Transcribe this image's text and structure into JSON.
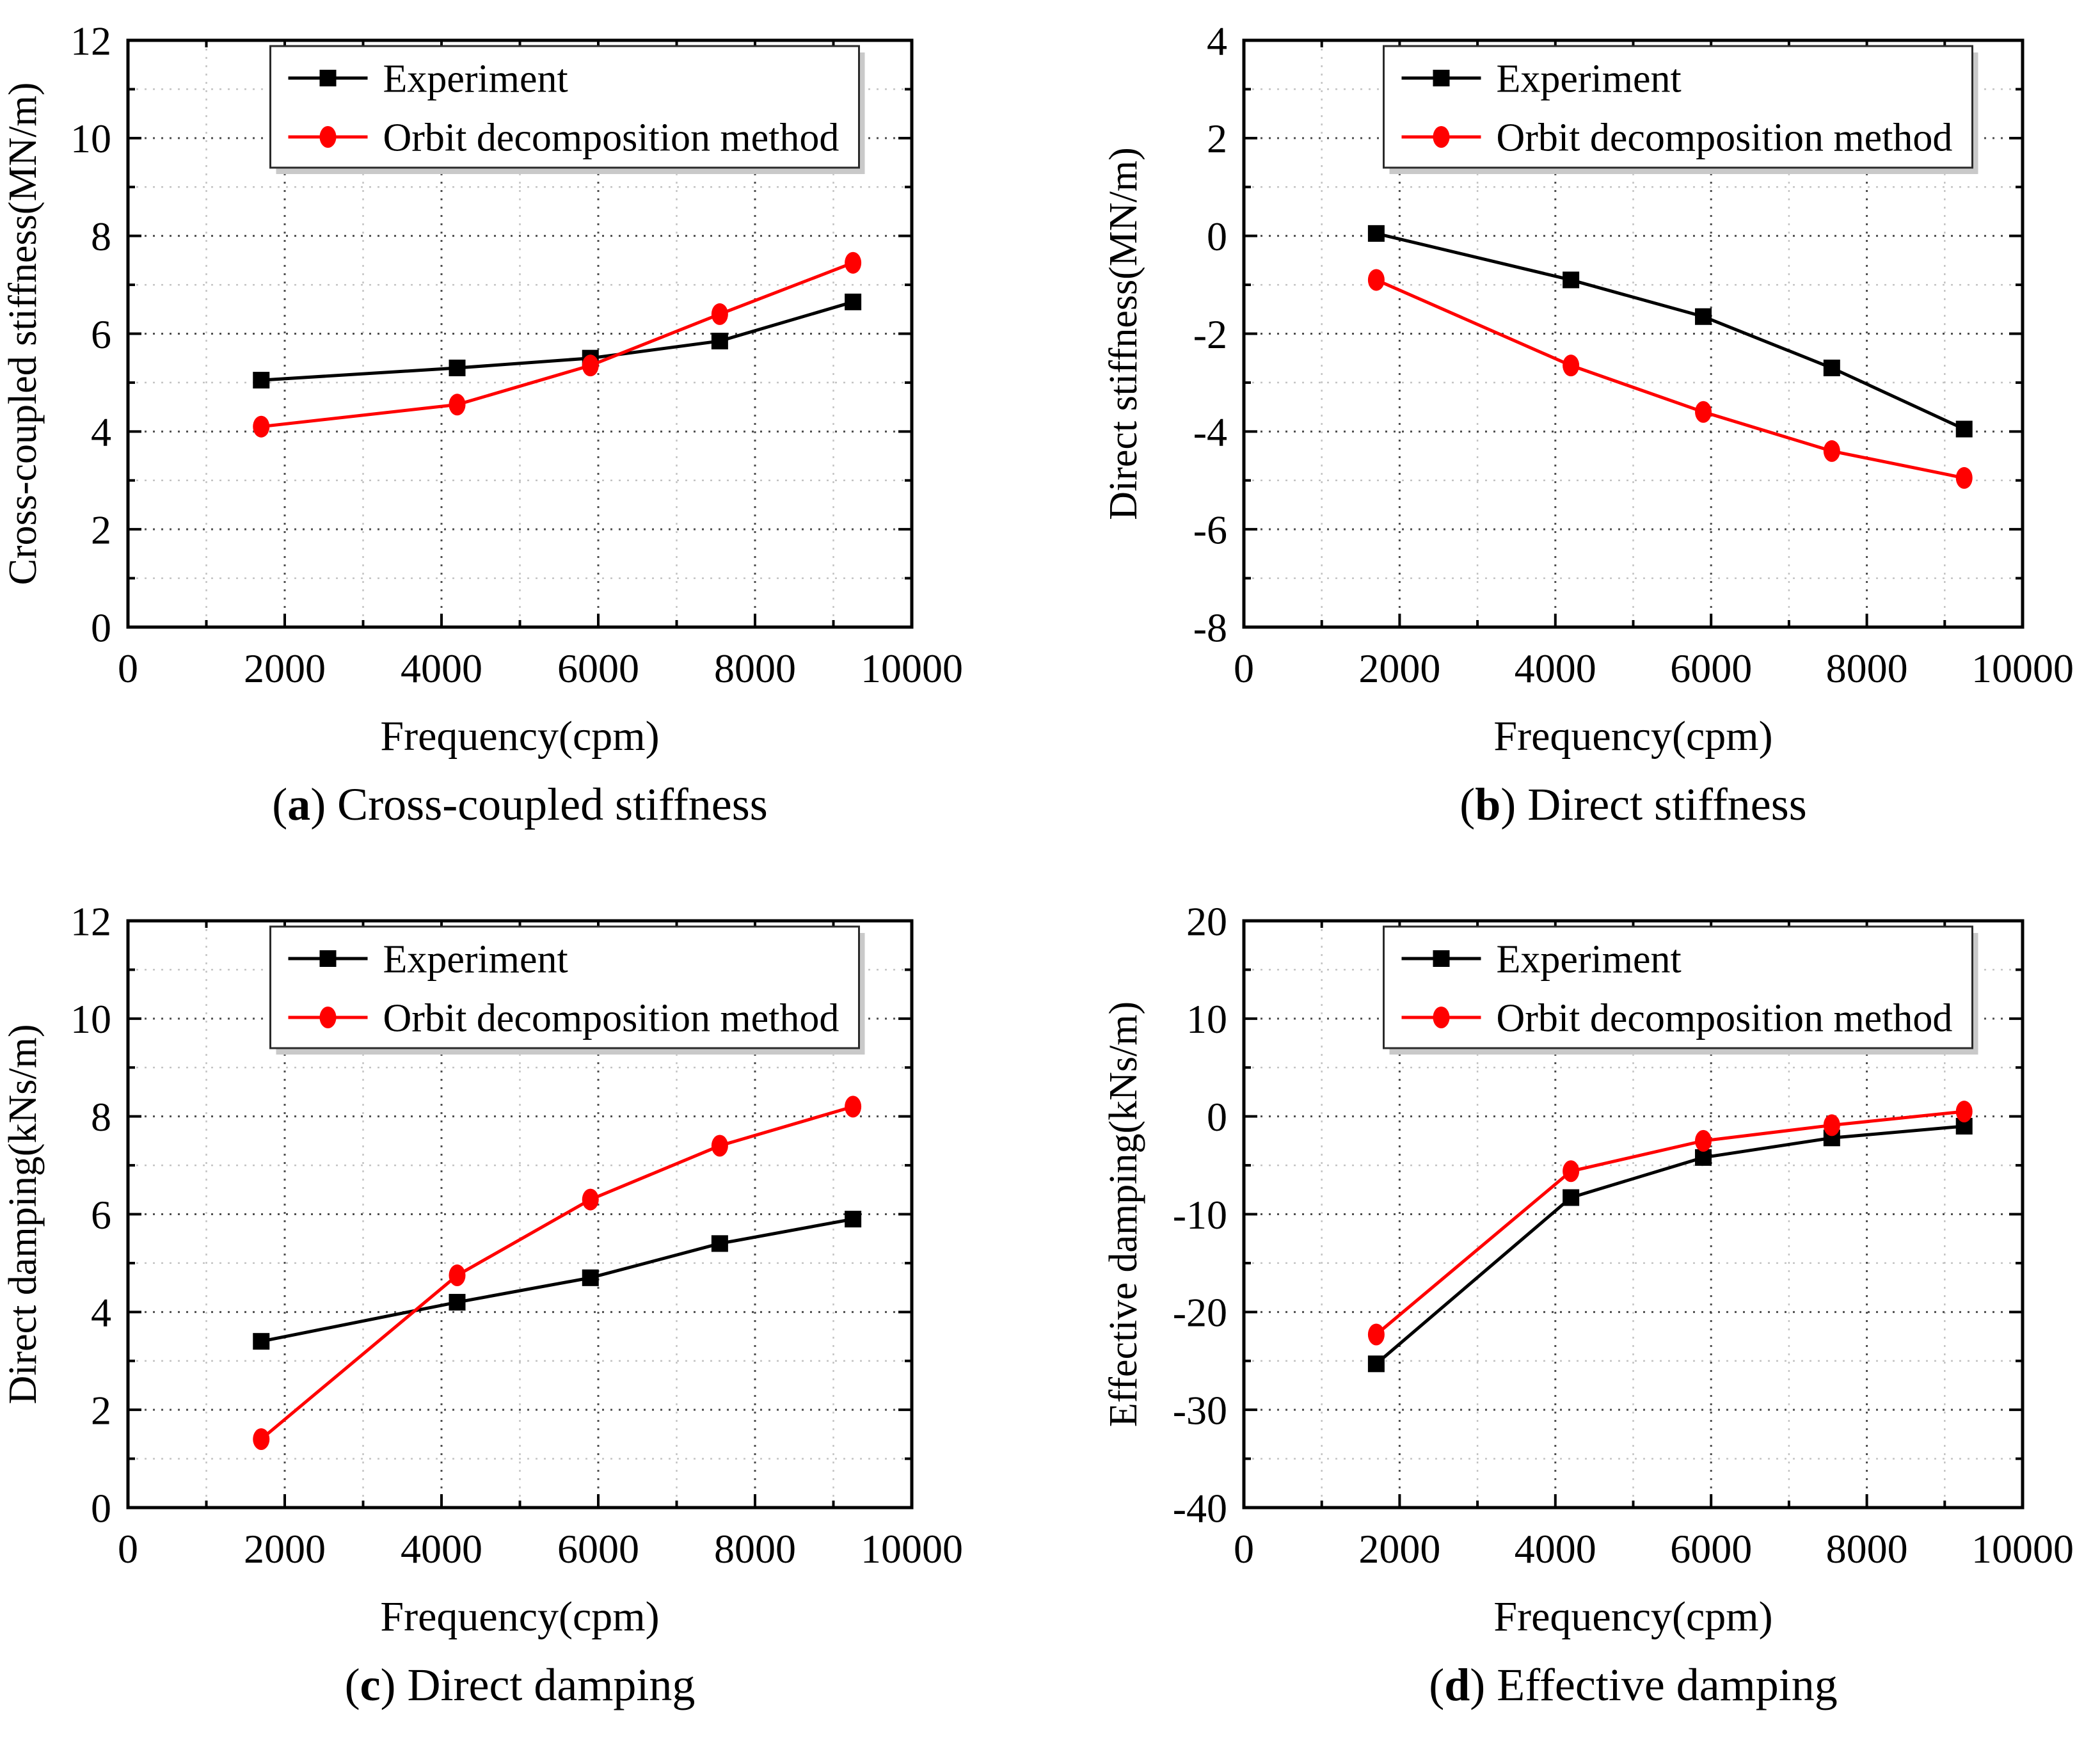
{
  "colors": {
    "experiment": "#000000",
    "orbit": "#ff0000",
    "grid_major": "#4d4d4d",
    "grid_minor": "#c3c3c3",
    "axis": "#000000",
    "legend_shadow": "#c9c9c9",
    "background": "#ffffff"
  },
  "legend": {
    "experiment_label": "Experiment",
    "orbit_label": "Orbit decomposition method"
  },
  "chart_data": [
    {
      "type": "line",
      "title": "(a) Cross-coupled stiffness",
      "caption": {
        "open": "(",
        "letter": "a",
        "close": ") ",
        "text": "Cross-coupled stiffness"
      },
      "xlabel": "Frequency(cpm)",
      "ylabel": "Cross-coupled stiffness(MN/m)",
      "x": [
        1700,
        4200,
        5900,
        7550,
        9250
      ],
      "xlim": [
        0,
        10000
      ],
      "ylim": [
        0,
        12
      ],
      "xticks_major": 2000,
      "xticks_minor": 1000,
      "yticks_major": 2,
      "yticks_minor": 1,
      "grid": "dotted",
      "legend_position": "top-center",
      "series": [
        {
          "name": "Experiment",
          "color": "#000000",
          "marker": "square",
          "values": [
            5.05,
            5.3,
            5.5,
            5.85,
            6.65
          ]
        },
        {
          "name": "Orbit decomposition method",
          "color": "#ff0000",
          "marker": "circle",
          "values": [
            4.1,
            4.55,
            5.35,
            6.4,
            7.45
          ]
        }
      ]
    },
    {
      "type": "line",
      "title": "(b) Direct stiffness",
      "caption": {
        "open": "(",
        "letter": "b",
        "close": ") ",
        "text": "Direct stiffness"
      },
      "xlabel": "Frequency(cpm)",
      "ylabel": "Direct stiffness(MN/m)",
      "x": [
        1700,
        4200,
        5900,
        7550,
        9250
      ],
      "xlim": [
        0,
        10000
      ],
      "ylim": [
        -8,
        4
      ],
      "xticks_major": 2000,
      "xticks_minor": 1000,
      "yticks_major": 2,
      "yticks_minor": 1,
      "grid": "dotted",
      "legend_position": "top-center",
      "series": [
        {
          "name": "Experiment",
          "color": "#000000",
          "marker": "square",
          "values": [
            0.05,
            -0.9,
            -1.65,
            -2.7,
            -3.95
          ]
        },
        {
          "name": "Orbit decomposition method",
          "color": "#ff0000",
          "marker": "circle",
          "values": [
            -0.9,
            -2.65,
            -3.6,
            -4.4,
            -4.95
          ]
        }
      ]
    },
    {
      "type": "line",
      "title": "(c) Direct damping",
      "caption": {
        "open": "(",
        "letter": "c",
        "close": ") ",
        "text": "Direct damping"
      },
      "xlabel": "Frequency(cpm)",
      "ylabel": "Direct damping(kNs/m)",
      "x": [
        1700,
        4200,
        5900,
        7550,
        9250
      ],
      "xlim": [
        0,
        10000
      ],
      "ylim": [
        0,
        12
      ],
      "xticks_major": 2000,
      "xticks_minor": 1000,
      "yticks_major": 2,
      "yticks_minor": 1,
      "grid": "dotted",
      "legend_position": "top-center",
      "series": [
        {
          "name": "Experiment",
          "color": "#000000",
          "marker": "square",
          "values": [
            3.4,
            4.2,
            4.7,
            5.4,
            5.9
          ]
        },
        {
          "name": "Orbit decomposition method",
          "color": "#ff0000",
          "marker": "circle",
          "values": [
            1.4,
            4.75,
            6.3,
            7.4,
            8.2
          ]
        }
      ]
    },
    {
      "type": "line",
      "title": "(d) Effective damping",
      "caption": {
        "open": "(",
        "letter": "d",
        "close": ") ",
        "text": "Effective damping"
      },
      "xlabel": "Frequency(cpm)",
      "ylabel": "Effective damping(kNs/m)",
      "x": [
        1700,
        4200,
        5900,
        7550,
        9250
      ],
      "xlim": [
        0,
        10000
      ],
      "ylim": [
        -40,
        20
      ],
      "xticks_major": 2000,
      "xticks_minor": 1000,
      "yticks_major": 10,
      "yticks_minor": 5,
      "grid": "dotted",
      "legend_position": "top-center",
      "series": [
        {
          "name": "Experiment",
          "color": "#000000",
          "marker": "square",
          "values": [
            -25.3,
            -8.3,
            -4.2,
            -2.2,
            -1.0
          ]
        },
        {
          "name": "Orbit decomposition method",
          "color": "#ff0000",
          "marker": "circle",
          "values": [
            -22.3,
            -5.6,
            -2.5,
            -0.9,
            0.5
          ]
        }
      ]
    }
  ]
}
